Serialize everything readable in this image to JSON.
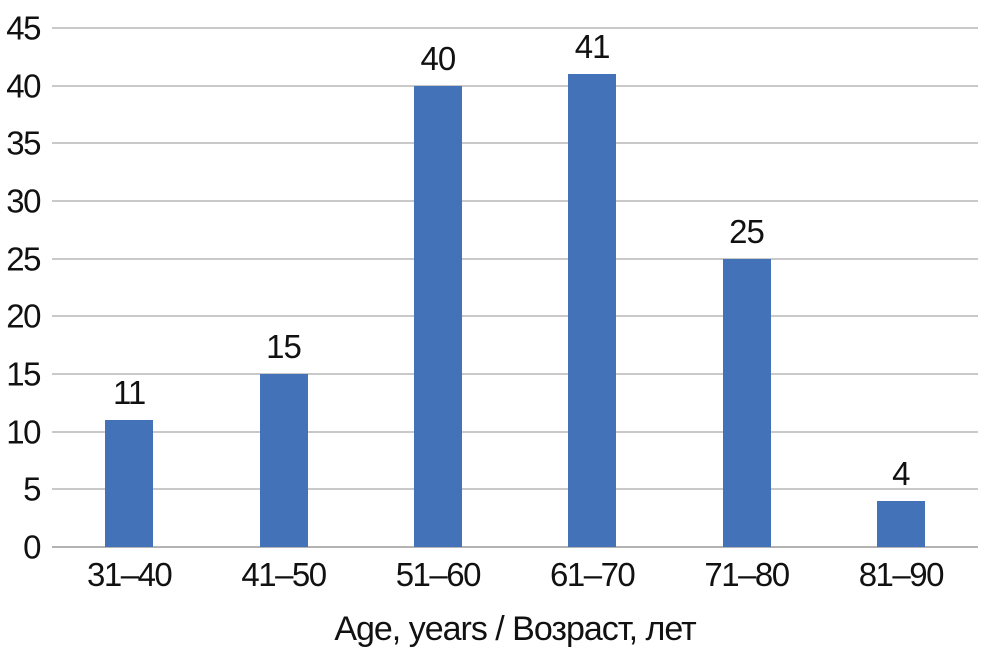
{
  "chart_data": {
    "type": "bar",
    "title": "",
    "xlabel": "Age, years / Возраст, лет",
    "ylabel": "",
    "categories": [
      "31–40",
      "41–50",
      "51–60",
      "61–70",
      "71–80",
      "81–90"
    ],
    "values": [
      11,
      15,
      40,
      41,
      25,
      4
    ],
    "data_labels_shown": true,
    "ylim": [
      0,
      45
    ],
    "ytick_step": 5,
    "ytick_labels": [
      "0",
      "5",
      "10",
      "15",
      "20",
      "25",
      "30",
      "35",
      "40",
      "45"
    ],
    "grid": "horizontal",
    "legend": "none",
    "colors": {
      "bar": "#4472b9",
      "gridline": "#c9c9c9",
      "zero_line": "#b3b3b3",
      "text": "#111111",
      "background": "#ffffff"
    }
  }
}
